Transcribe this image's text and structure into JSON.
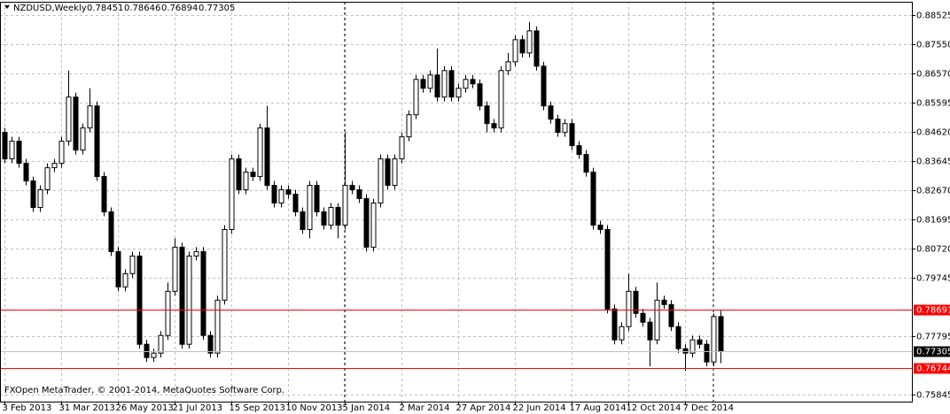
{
  "chart_data": {
    "type": "candlestick",
    "title": "NZDUSD,Weekly",
    "copyright": "FXOpen MetaTrader, © 2001-2014, MetaQuotes Software Corp.",
    "categories": [
      "3 Feb 2013",
      null,
      null,
      null,
      null,
      null,
      null,
      null,
      "31 Mar 2013",
      null,
      null,
      null,
      null,
      null,
      null,
      null,
      "26 May 2013",
      null,
      null,
      null,
      null,
      null,
      null,
      null,
      "21 Jul 2013",
      null,
      null,
      null,
      null,
      null,
      null,
      null,
      "15 Sep 2013",
      null,
      null,
      null,
      null,
      null,
      null,
      null,
      "10 Nov 2013",
      null,
      null,
      null,
      null,
      null,
      null,
      null,
      "5 Jan 2014",
      null,
      null,
      null,
      null,
      null,
      null,
      null,
      "2 Mar 2014",
      null,
      null,
      null,
      null,
      null,
      null,
      null,
      "27 Apr 2014",
      null,
      null,
      null,
      null,
      null,
      null,
      null,
      "22 Jun 2014",
      null,
      null,
      null,
      null,
      null,
      null,
      null,
      "17 Aug 2014",
      null,
      null,
      null,
      null,
      null,
      null,
      null,
      "12 Oct 2014",
      null,
      null,
      null,
      null,
      null,
      null,
      null,
      "7 Dec 2014",
      null,
      null,
      null,
      null,
      null
    ],
    "open": [
      0.84605,
      0.8372,
      0.8431,
      0.83573,
      0.82983,
      0.82098,
      0.82688,
      0.83425,
      0.83573,
      0.8431,
      0.85785,
      0.84015,
      0.84753,
      0.8549,
      0.8313,
      0.8195,
      0.80623,
      0.79443,
      0.79885,
      0.80475,
      0.77525,
      0.77083,
      0.7723,
      0.7782,
      0.79295,
      0.8077,
      0.77525,
      0.80475,
      0.80623,
      0.7782,
      0.7723,
      0.79,
      0.8136,
      0.8372,
      0.82688,
      0.83278,
      0.8313,
      0.84753,
      0.82835,
      0.82245,
      0.82688,
      0.8254,
      0.8195,
      0.8136,
      0.82835,
      0.8195,
      0.81508,
      0.82098,
      0.81508,
      0.82835,
      0.82688,
      0.82393,
      0.8077,
      0.82245,
      0.8372,
      0.82835,
      0.8372,
      0.84458,
      0.85195,
      0.86375,
      0.8608,
      0.86523,
      0.85785,
      0.8667,
      0.85785,
      0.8608,
      0.86375,
      0.86228,
      0.8549,
      0.849,
      0.84753,
      0.8667,
      0.86965,
      0.87703,
      0.8726,
      0.87998,
      0.86818,
      0.8549,
      0.85048,
      0.84605,
      0.849,
      0.84163,
      0.83868,
      0.83278,
      0.81508,
      0.8136,
      0.78705,
      0.77673,
      0.78115,
      0.79295,
      0.78558,
      0.78263,
      0.77673,
      0.79,
      0.78853,
      0.78115,
      0.77378,
      0.7723,
      0.77673,
      0.77525,
      0.76935,
      0.78451
    ],
    "high": [
      0.84753,
      0.84458,
      0.84458,
      0.8372,
      0.8313,
      0.82835,
      0.83573,
      0.8372,
      0.84458,
      0.8667,
      0.85933,
      0.849,
      0.8608,
      0.85638,
      0.83278,
      0.82098,
      0.8077,
      0.80033,
      0.80623,
      0.80623,
      0.77673,
      0.77378,
      0.77968,
      0.7959,
      0.81065,
      0.80918,
      0.80623,
      0.8077,
      0.8077,
      0.77968,
      0.79148,
      0.81508,
      0.83868,
      0.83868,
      0.83425,
      0.83425,
      0.849,
      0.8549,
      0.82983,
      0.82835,
      0.82835,
      0.82688,
      0.82098,
      0.82983,
      0.82983,
      0.82098,
      0.82245,
      0.82245,
      0.84605,
      0.82983,
      0.82835,
      0.8254,
      0.82393,
      0.83868,
      0.83868,
      0.83868,
      0.84605,
      0.85343,
      0.86523,
      0.86523,
      0.8667,
      0.87408,
      0.86818,
      0.86818,
      0.86228,
      0.86523,
      0.86523,
      0.86375,
      0.85638,
      0.85048,
      0.86818,
      0.8726,
      0.8785,
      0.8785,
      0.88293,
      0.88145,
      0.86965,
      0.85638,
      0.85195,
      0.85048,
      0.85048,
      0.8431,
      0.84015,
      0.83425,
      0.81655,
      0.81508,
      0.78853,
      0.78263,
      0.79885,
      0.79443,
      0.78705,
      0.7841,
      0.7959,
      0.79148,
      0.79,
      0.78263,
      0.77525,
      0.7782,
      0.7782,
      0.77673,
      0.78558,
      0.78646
    ],
    "low": [
      0.83573,
      0.83573,
      0.83425,
      0.82835,
      0.8195,
      0.8195,
      0.8254,
      0.83278,
      0.83425,
      0.84163,
      0.83868,
      0.83868,
      0.84605,
      0.82983,
      0.81803,
      0.80475,
      0.79295,
      0.79295,
      0.79738,
      0.77378,
      0.76935,
      0.76935,
      0.77083,
      0.77673,
      0.79148,
      0.77378,
      0.77378,
      0.80328,
      0.77673,
      0.77083,
      0.77083,
      0.78853,
      0.81213,
      0.8254,
      0.8254,
      0.82983,
      0.82983,
      0.82688,
      0.82098,
      0.82098,
      0.82393,
      0.81803,
      0.81213,
      0.81065,
      0.81803,
      0.8136,
      0.8136,
      0.81065,
      0.8136,
      0.8254,
      0.82245,
      0.80623,
      0.80623,
      0.82098,
      0.82688,
      0.82688,
      0.83573,
      0.8431,
      0.85048,
      0.85933,
      0.85933,
      0.85638,
      0.85638,
      0.85638,
      0.85638,
      0.85933,
      0.8608,
      0.85343,
      0.84605,
      0.84605,
      0.84605,
      0.86523,
      0.86818,
      0.87113,
      0.87113,
      0.8667,
      0.85343,
      0.849,
      0.84458,
      0.84458,
      0.84015,
      0.8372,
      0.8313,
      0.8136,
      0.81213,
      0.78558,
      0.77525,
      0.77525,
      0.77968,
      0.7841,
      0.78115,
      0.76788,
      0.77525,
      0.78705,
      0.77968,
      0.7723,
      0.7664,
      0.77083,
      0.77378,
      0.76788,
      0.76788,
      0.76894
    ],
    "close": [
      0.8372,
      0.8431,
      0.83573,
      0.82983,
      0.82098,
      0.82688,
      0.83425,
      0.83573,
      0.8431,
      0.85785,
      0.84015,
      0.84753,
      0.8549,
      0.8313,
      0.8195,
      0.80623,
      0.79443,
      0.79885,
      0.80475,
      0.77525,
      0.77083,
      0.7723,
      0.7782,
      0.79295,
      0.8077,
      0.77525,
      0.80475,
      0.80623,
      0.7782,
      0.7723,
      0.79,
      0.8136,
      0.8372,
      0.82688,
      0.83278,
      0.8313,
      0.84753,
      0.82835,
      0.82245,
      0.82688,
      0.8254,
      0.8195,
      0.8136,
      0.82835,
      0.8195,
      0.81508,
      0.82098,
      0.81508,
      0.82835,
      0.82688,
      0.82393,
      0.8077,
      0.82245,
      0.8372,
      0.82835,
      0.8372,
      0.84458,
      0.85195,
      0.86375,
      0.8608,
      0.86523,
      0.85785,
      0.8667,
      0.85785,
      0.8608,
      0.86375,
      0.86228,
      0.8549,
      0.849,
      0.84753,
      0.8667,
      0.86965,
      0.87703,
      0.8726,
      0.87998,
      0.86818,
      0.8549,
      0.85048,
      0.84605,
      0.849,
      0.84163,
      0.83868,
      0.83278,
      0.81508,
      0.8136,
      0.78705,
      0.77673,
      0.78115,
      0.79295,
      0.78558,
      0.78263,
      0.77673,
      0.79,
      0.78853,
      0.78115,
      0.77378,
      0.7723,
      0.77673,
      0.77525,
      0.76935,
      0.78451,
      0.77305
    ],
    "ylim": [
      0.7558,
      0.8897
    ],
    "yticks": [
      0.88525,
      {
        "value": 0.8755,
        "label": "0.87550"
      },
      {
        "value": 0.8657,
        "label": "0.86570"
      },
      0.85595,
      {
        "value": 0.8462,
        "label": "0.84620"
      },
      0.83645,
      {
        "value": 0.8267,
        "label": "0.82670"
      },
      0.81695,
      {
        "value": 0.8072,
        "label": "0.80720"
      },
      0.79745,
      0.77795,
      0.75845
    ],
    "hlines": [
      0.78691,
      0.76744
    ],
    "hline_color": "#ff0000",
    "grid": true
  }
}
